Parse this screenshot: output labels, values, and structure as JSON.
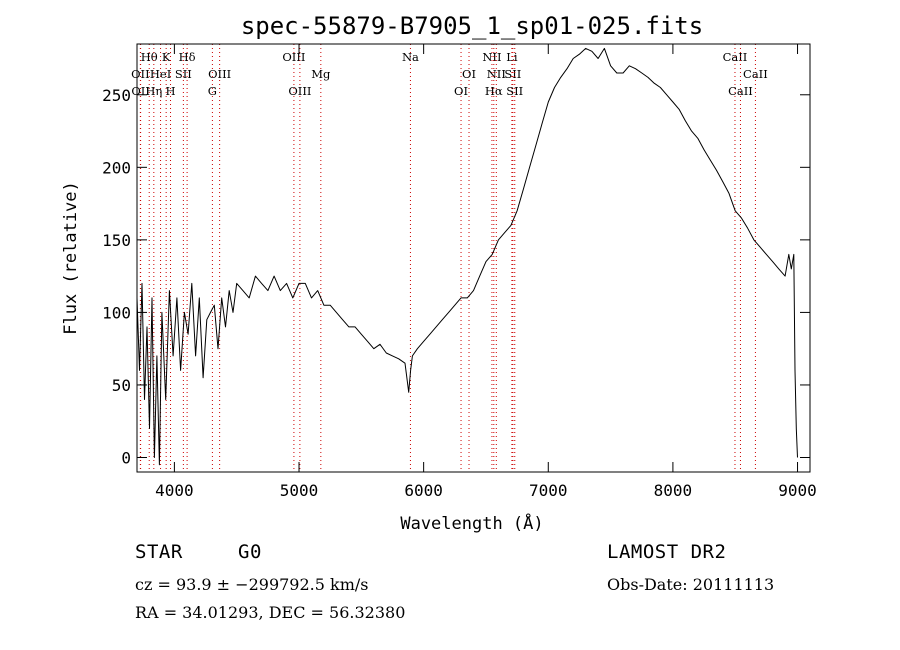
{
  "chart_data": {
    "type": "line",
    "title": "spec-55879-B7905_1_sp01-025.fits",
    "xlabel": "Wavelength (Å)",
    "ylabel": "Flux (relative)",
    "xlim": [
      3700,
      9100
    ],
    "ylim": [
      -10,
      285
    ],
    "x_ticks": [
      4000,
      5000,
      6000,
      7000,
      8000,
      9000
    ],
    "x_tick_labels": [
      "4000",
      "5000",
      "6000",
      "7000",
      "8000",
      "9000"
    ],
    "y_ticks": [
      0,
      50,
      100,
      150,
      200,
      250
    ],
    "y_tick_labels": [
      "0",
      "50",
      "100",
      "150",
      "200",
      "250"
    ],
    "grid": false,
    "series": [
      {
        "x": [
          3700,
          3720,
          3740,
          3760,
          3780,
          3800,
          3820,
          3840,
          3860,
          3880,
          3900,
          3930,
          3960,
          3990,
          4020,
          4050,
          4080,
          4110,
          4140,
          4170,
          4200,
          4230,
          4260,
          4290,
          4320,
          4350,
          4380,
          4410,
          4440,
          4470,
          4500,
          4550,
          4600,
          4650,
          4700,
          4750,
          4800,
          4850,
          4900,
          4950,
          5000,
          5050,
          5100,
          5150,
          5200,
          5250,
          5300,
          5350,
          5400,
          5450,
          5500,
          5550,
          5600,
          5650,
          5700,
          5750,
          5800,
          5850,
          5880,
          5895,
          5910,
          5950,
          6000,
          6050,
          6100,
          6150,
          6200,
          6250,
          6300,
          6350,
          6400,
          6450,
          6500,
          6550,
          6600,
          6650,
          6700,
          6750,
          6800,
          6850,
          6900,
          6950,
          7000,
          7050,
          7100,
          7150,
          7200,
          7250,
          7300,
          7350,
          7400,
          7450,
          7500,
          7550,
          7600,
          7650,
          7700,
          7750,
          7800,
          7850,
          7900,
          7950,
          8000,
          8050,
          8100,
          8150,
          8200,
          8250,
          8300,
          8350,
          8400,
          8450,
          8500,
          8550,
          8600,
          8650,
          8700,
          8750,
          8800,
          8850,
          8900,
          8930,
          8950,
          8970,
          8980,
          8990,
          9000
        ],
        "values": [
          110,
          60,
          120,
          40,
          90,
          20,
          110,
          0,
          70,
          -5,
          100,
          40,
          115,
          70,
          110,
          60,
          100,
          85,
          120,
          70,
          110,
          55,
          95,
          100,
          105,
          75,
          110,
          90,
          115,
          100,
          120,
          115,
          110,
          125,
          120,
          115,
          125,
          115,
          120,
          110,
          120,
          120,
          110,
          115,
          105,
          105,
          100,
          95,
          90,
          90,
          85,
          80,
          75,
          78,
          72,
          70,
          68,
          65,
          45,
          60,
          70,
          75,
          80,
          85,
          90,
          95,
          100,
          105,
          110,
          110,
          115,
          125,
          135,
          140,
          150,
          155,
          160,
          170,
          185,
          200,
          215,
          230,
          245,
          255,
          262,
          268,
          275,
          278,
          282,
          280,
          275,
          282,
          270,
          265,
          265,
          270,
          268,
          265,
          262,
          258,
          255,
          250,
          245,
          240,
          232,
          225,
          220,
          212,
          205,
          198,
          190,
          182,
          170,
          165,
          158,
          150,
          145,
          140,
          135,
          130,
          125,
          140,
          130,
          140,
          60,
          20,
          0
        ]
      }
    ],
    "line_markers": [
      {
        "label": "Hθ",
        "x": 3798,
        "row": 0
      },
      {
        "label": "K",
        "x": 3934,
        "row": 0
      },
      {
        "label": "Hδ",
        "x": 4102,
        "row": 0
      },
      {
        "label": "OII",
        "x": 3727,
        "row": 1
      },
      {
        "label": "HeI",
        "x": 3889,
        "row": 1
      },
      {
        "label": "SII",
        "x": 4072,
        "row": 1
      },
      {
        "label": "OII",
        "x": 3729,
        "row": 2
      },
      {
        "label": "Hη",
        "x": 3835,
        "row": 2
      },
      {
        "label": "H",
        "x": 3969,
        "row": 2
      },
      {
        "label": "OIII",
        "x": 4363,
        "row": 1
      },
      {
        "label": "G",
        "x": 4305,
        "row": 2
      },
      {
        "label": "OIII",
        "x": 4959,
        "row": 0
      },
      {
        "label": "OIII",
        "x": 5007,
        "row": 2
      },
      {
        "label": "Mg",
        "x": 5175,
        "row": 1
      },
      {
        "label": "Na",
        "x": 5894,
        "row": 0
      },
      {
        "label": "OI",
        "x": 6364,
        "row": 1
      },
      {
        "label": "OI",
        "x": 6300,
        "row": 2
      },
      {
        "label": "NII",
        "x": 6548,
        "row": 0
      },
      {
        "label": "Li",
        "x": 6708,
        "row": 0
      },
      {
        "label": "NII",
        "x": 6583,
        "row": 1
      },
      {
        "label": "SII",
        "x": 6716,
        "row": 1
      },
      {
        "label": "Hα",
        "x": 6563,
        "row": 2
      },
      {
        "label": "SII",
        "x": 6731,
        "row": 2
      },
      {
        "label": "CaII",
        "x": 8498,
        "row": 0
      },
      {
        "label": "CaII",
        "x": 8662,
        "row": 1
      },
      {
        "label": "CaII",
        "x": 8542,
        "row": 2
      }
    ]
  },
  "info": {
    "object_class": "STAR",
    "subclass": "G0",
    "survey": "LAMOST DR2",
    "redshift_line": "cz = 93.9 ± −299792.5 km/s",
    "obs_date": "Obs-Date: 20111113",
    "coords": "RA =  34.01293, DEC =  56.32380"
  }
}
